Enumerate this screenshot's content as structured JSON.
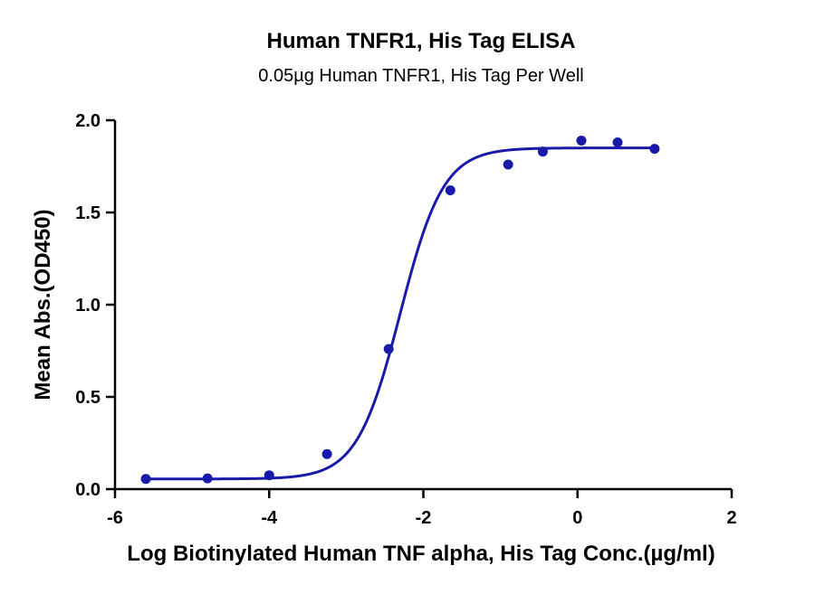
{
  "chart_data": {
    "type": "scatter",
    "title": "Human TNFR1, His Tag ELISA",
    "subtitle": "0.05µg Human TNFR1, His Tag Per Well",
    "xlabel": "Log Biotinylated Human TNF alpha, His Tag Conc.(µg/ml)",
    "ylabel": "Mean Abs.(OD450)",
    "xlim": [
      -6,
      2
    ],
    "ylim": [
      0,
      2
    ],
    "x_ticks": [
      -6,
      -4,
      -2,
      0,
      2
    ],
    "x_tick_labels": [
      "-6",
      "-4",
      "-2",
      "0",
      "2"
    ],
    "y_ticks": [
      0,
      0.5,
      1,
      1.5,
      2
    ],
    "y_tick_labels": [
      "0.0",
      "0.5",
      "1.0",
      "1.5",
      "2.0"
    ],
    "grid": false,
    "color": "#1a1aaa",
    "series": [
      {
        "x": [
          -5.6,
          -4.8,
          -4.0,
          -3.25,
          -2.45,
          -1.65,
          -0.9,
          -0.45,
          0.05,
          0.52,
          1.0
        ],
        "y": [
          0.055,
          0.058,
          0.075,
          0.19,
          0.76,
          1.62,
          1.76,
          1.83,
          1.89,
          1.88,
          1.845
        ]
      }
    ],
    "fit_curve": {
      "model": "4PL",
      "bottom": 0.055,
      "top": 1.85,
      "log_ec50": -2.3,
      "hill_slope": 1.55,
      "x_range": [
        -5.6,
        1.0
      ]
    }
  }
}
